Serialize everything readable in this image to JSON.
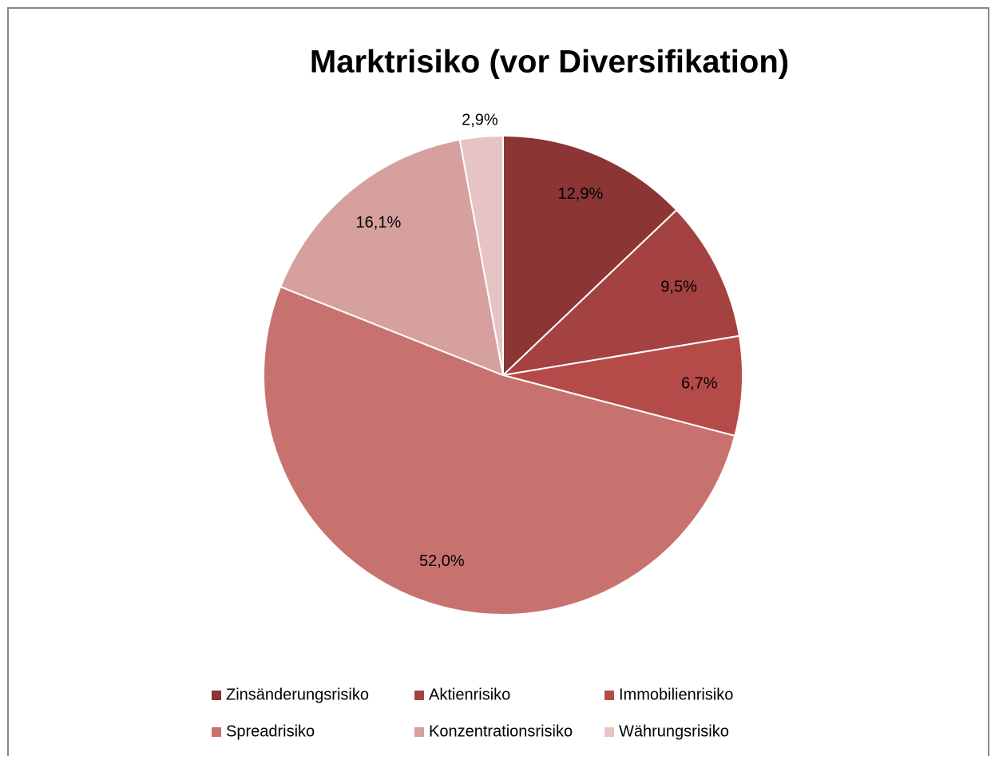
{
  "chart_data": {
    "type": "pie",
    "title": "Marktrisiko (vor Diversifikation)",
    "categories": [
      "Zinsänderungsrisiko",
      "Aktienrisiko",
      "Immobilienrisiko",
      "Spreadrisiko",
      "Konzentrationsrisiko",
      "Währungsrisiko"
    ],
    "values": [
      12.9,
      9.5,
      6.7,
      52.0,
      16.1,
      2.9
    ],
    "value_labels": [
      "12,9%",
      "9,5%",
      "6,7%",
      "52,0%",
      "16,1%",
      "2,9%"
    ],
    "colors": [
      "#8b3535",
      "#a44241",
      "#b54b48",
      "#c87270",
      "#d6a09f",
      "#e6c4c4"
    ],
    "legend": "bottom"
  }
}
